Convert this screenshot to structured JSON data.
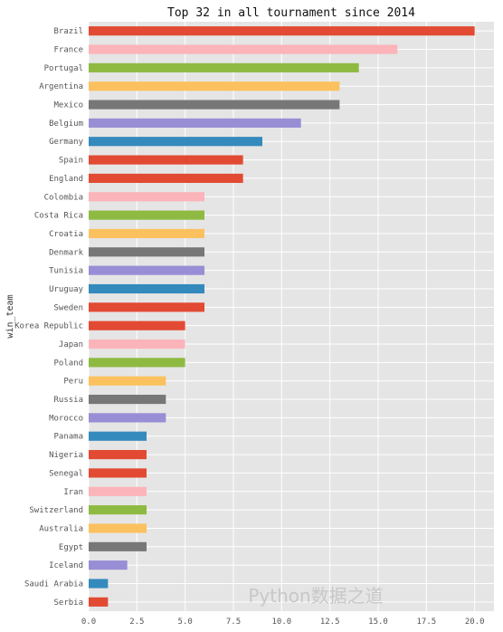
{
  "chart_data": {
    "type": "bar",
    "orientation": "horizontal",
    "title": "Top 32 in all tournament since 2014",
    "ylabel": "win_team",
    "xlabel": "",
    "xlim": [
      0,
      21
    ],
    "xticks": [
      "0.0",
      "2.5",
      "5.0",
      "7.5",
      "10.0",
      "12.5",
      "15.0",
      "17.5",
      "20.0"
    ],
    "grid": true,
    "legend": "none",
    "categories": [
      "Brazil",
      "France",
      "Portugal",
      "Argentina",
      "Mexico",
      "Belgium",
      "Germany",
      "Spain",
      "England",
      "Colombia",
      "Costa Rica",
      "Croatia",
      "Denmark",
      "Tunisia",
      "Uruguay",
      "Sweden",
      "Korea Republic",
      "Japan",
      "Poland",
      "Peru",
      "Russia",
      "Morocco",
      "Panama",
      "Nigeria",
      "Senegal",
      "Iran",
      "Switzerland",
      "Australia",
      "Egypt",
      "Iceland",
      "Saudi Arabia",
      "Serbia"
    ],
    "values": [
      20,
      16,
      14,
      13,
      13,
      11,
      9,
      8,
      8,
      6,
      6,
      6,
      6,
      6,
      6,
      6,
      5,
      5,
      5,
      4,
      4,
      4,
      3,
      3,
      3,
      3,
      3,
      3,
      3,
      2,
      1,
      1
    ],
    "colors": [
      "#E24A33",
      "#FBB4B9",
      "#8EBA42",
      "#FBC15E",
      "#777777",
      "#988ED5",
      "#348ABD",
      "#E24A33",
      "#E24A33",
      "#FBB4B9",
      "#8EBA42",
      "#FBC15E",
      "#777777",
      "#988ED5",
      "#348ABD",
      "#E24A33",
      "#E24A33",
      "#FBB4B9",
      "#8EBA42",
      "#FBC15E",
      "#777777",
      "#988ED5",
      "#348ABD",
      "#E24A33",
      "#E24A33",
      "#FBB4B9",
      "#8EBA42",
      "#FBC15E",
      "#777777",
      "#988ED5",
      "#348ABD",
      "#E24A33"
    ],
    "background": "#E5E5E5"
  },
  "watermark": "Python数据之道"
}
